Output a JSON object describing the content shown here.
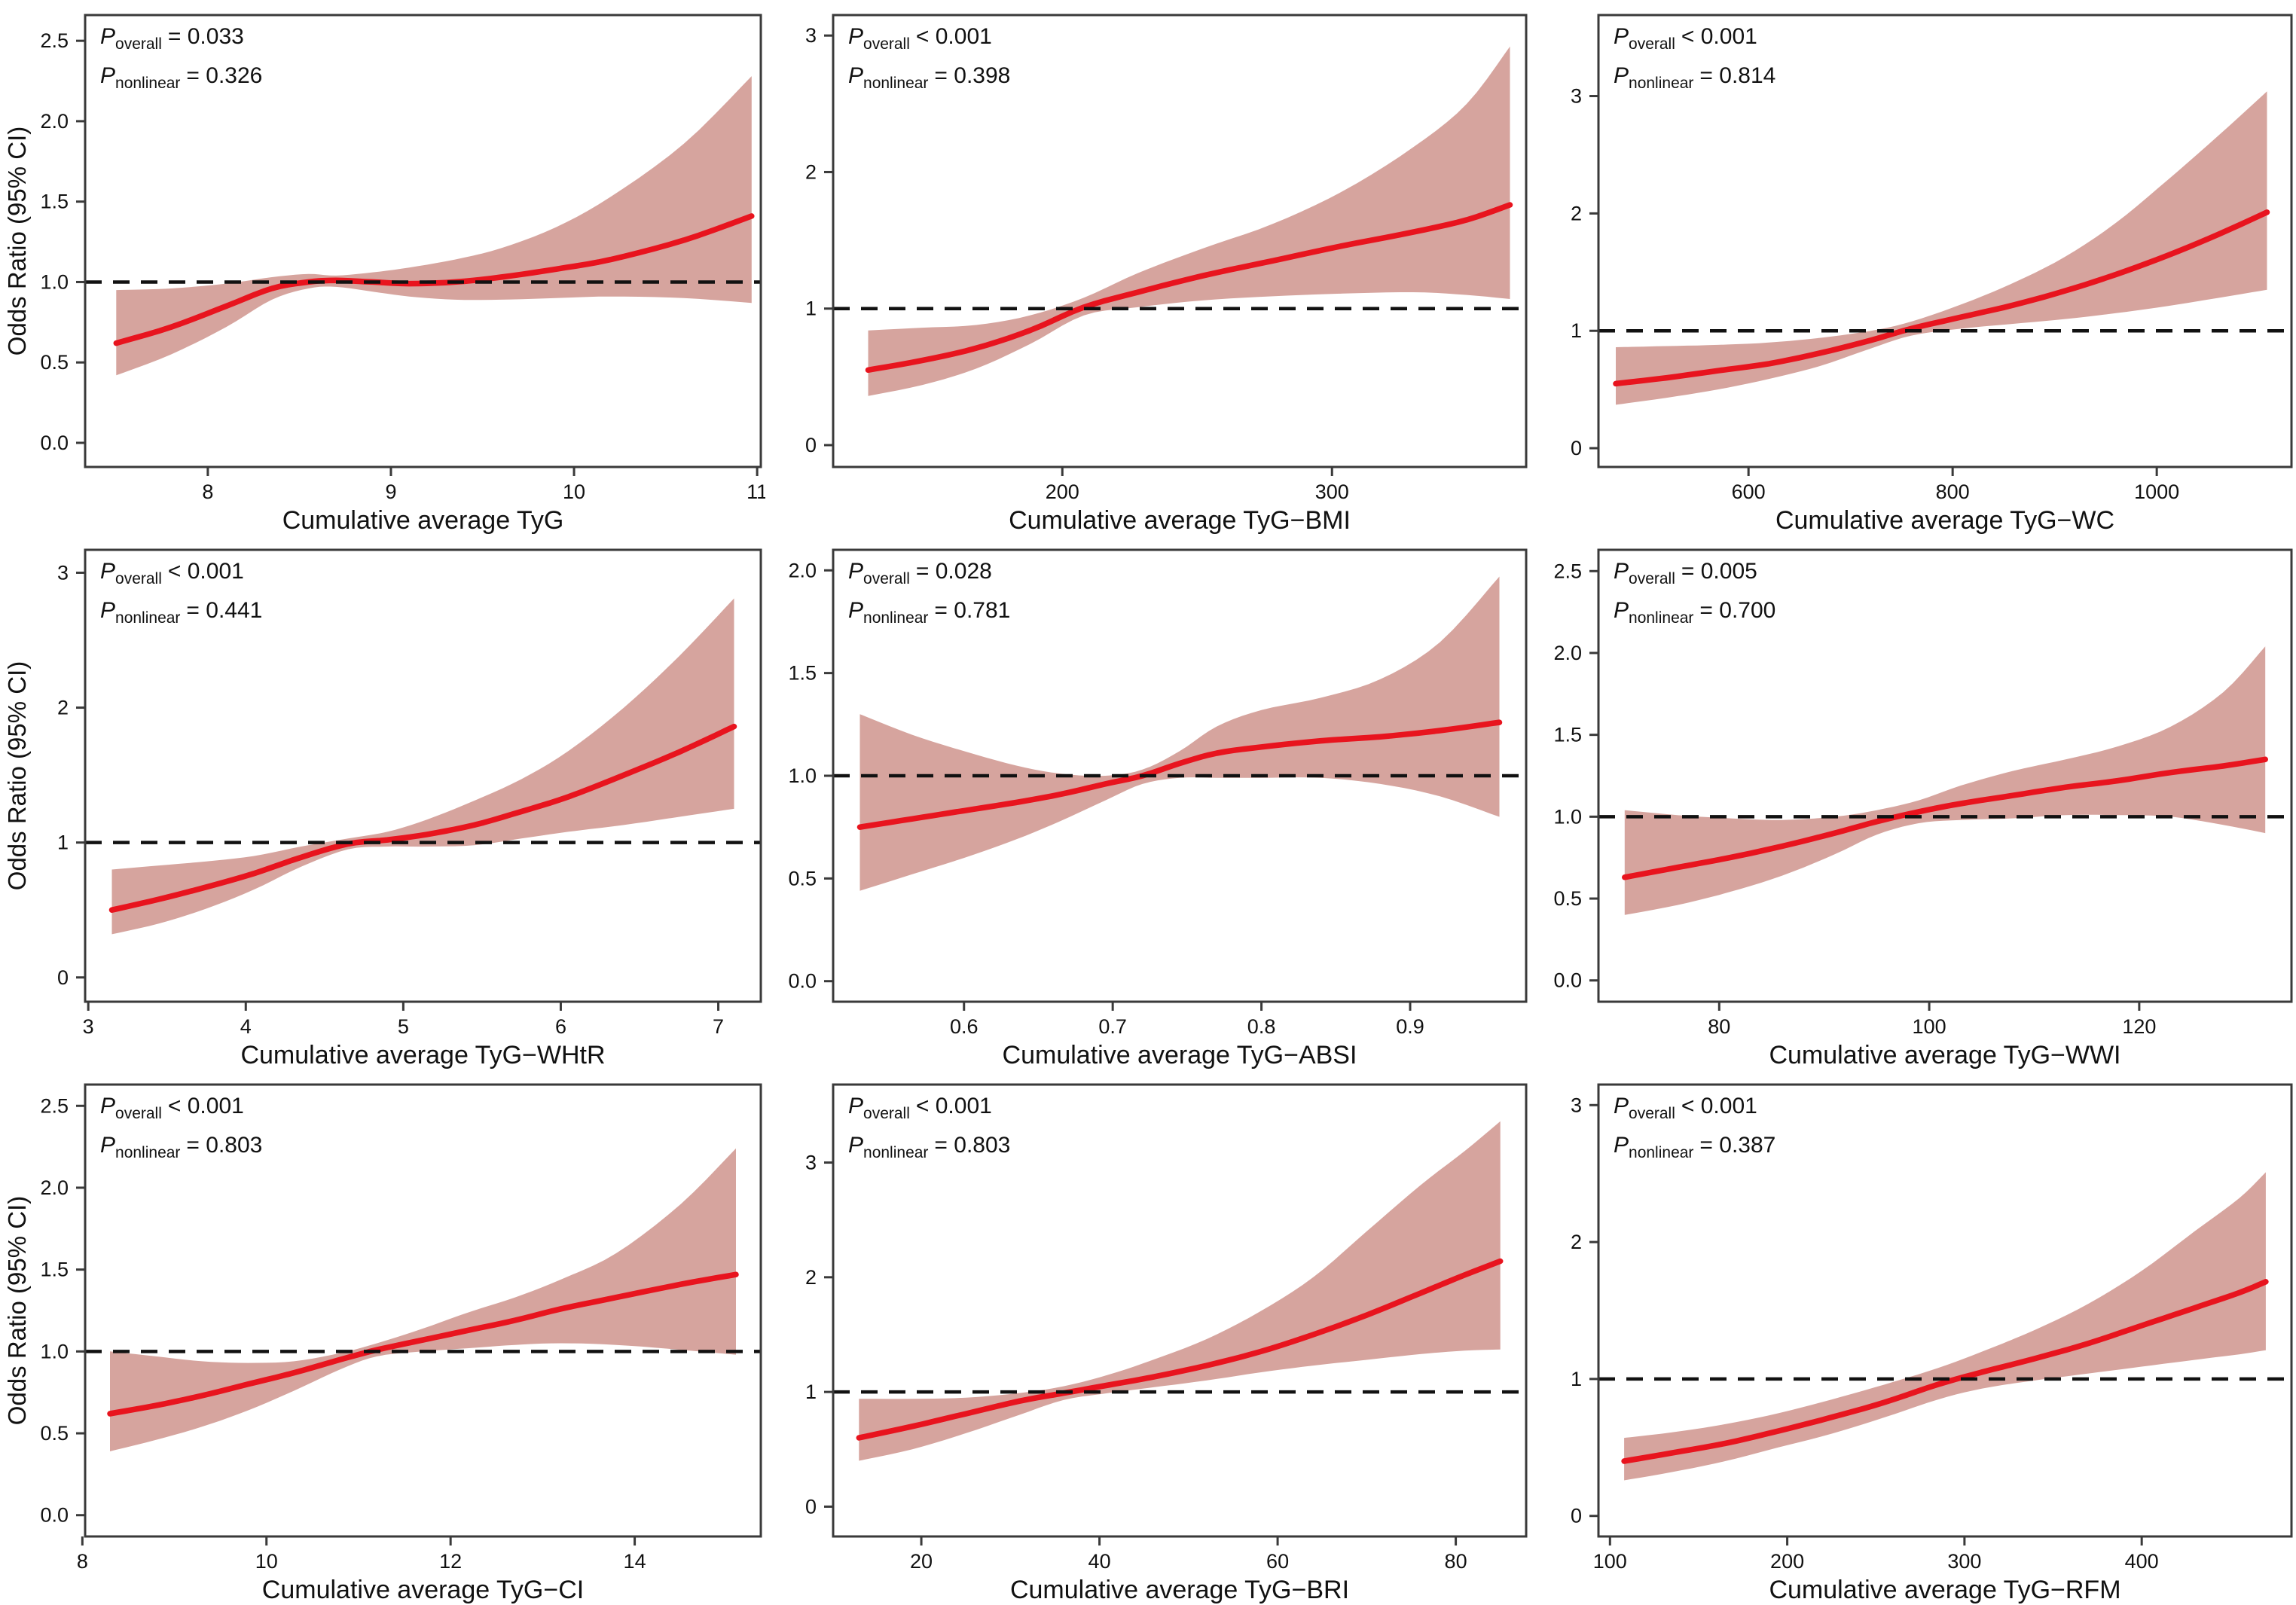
{
  "figure": {
    "ylabel": "Odds Ratio (95% CI)",
    "p_symbol": "P",
    "p_overall_sub": "overall",
    "p_nonlinear_sub": "nonlinear",
    "reference_odds_ratio": 1,
    "colors": {
      "ci_band": "#d6a49e",
      "spline_line": "#e8141e",
      "reference_line": "#111111",
      "axis_box": "#3a3a3a",
      "text": "#111111",
      "background": "#ffffff"
    }
  },
  "chart_data": [
    {
      "type": "line",
      "panel": "TyG",
      "xlabel": "Cumulative average TyG",
      "show_ylabel": true,
      "p_overall": "= 0.033",
      "p_nonlinear": "= 0.326",
      "xlim": [
        7.33,
        11.02
      ],
      "ylim": [
        -0.15,
        2.66
      ],
      "xticks": [
        8,
        9,
        10,
        11
      ],
      "xtick_labels": [
        "8",
        "9",
        "10",
        "11"
      ],
      "yticks": [
        0,
        0.5,
        1,
        1.5,
        2,
        2.5
      ],
      "ytick_labels": [
        "0.0",
        "0.5",
        "1.0",
        "1.5",
        "2.0",
        "2.5"
      ],
      "reference_y": 1,
      "x": [
        7.5,
        7.8,
        8.1,
        8.35,
        8.55,
        8.7,
        8.9,
        9.1,
        9.35,
        9.6,
        9.9,
        10.2,
        10.6,
        10.97
      ],
      "odds_ratio": [
        0.62,
        0.72,
        0.85,
        0.96,
        1.0,
        1.01,
        1.0,
        0.99,
        1.0,
        1.03,
        1.08,
        1.14,
        1.26,
        1.41
      ],
      "ci_upper": [
        0.95,
        0.96,
        0.99,
        1.03,
        1.05,
        1.04,
        1.06,
        1.09,
        1.14,
        1.21,
        1.34,
        1.53,
        1.86,
        2.28
      ],
      "ci_lower": [
        0.42,
        0.55,
        0.72,
        0.89,
        0.96,
        0.97,
        0.94,
        0.91,
        0.89,
        0.89,
        0.9,
        0.91,
        0.9,
        0.87
      ]
    },
    {
      "type": "line",
      "panel": "TyG-BMI",
      "xlabel": "Cumulative average TyG−BMI",
      "show_ylabel": false,
      "p_overall": "< 0.001",
      "p_nonlinear": "= 0.398",
      "xlim": [
        115,
        372
      ],
      "ylim": [
        -0.16,
        3.15
      ],
      "xticks": [
        200,
        300
      ],
      "xtick_labels": [
        "200",
        "300"
      ],
      "yticks": [
        0,
        1,
        2,
        3
      ],
      "ytick_labels": [
        "0",
        "1",
        "2",
        "3"
      ],
      "reference_y": 1,
      "x": [
        128,
        148,
        168,
        188,
        208,
        228,
        252,
        278,
        304,
        330,
        350,
        366
      ],
      "odds_ratio": [
        0.55,
        0.62,
        0.71,
        0.84,
        1.01,
        1.12,
        1.24,
        1.35,
        1.46,
        1.56,
        1.65,
        1.76
      ],
      "ci_upper": [
        0.84,
        0.86,
        0.88,
        0.95,
        1.08,
        1.26,
        1.44,
        1.62,
        1.86,
        2.18,
        2.5,
        2.92
      ],
      "ci_lower": [
        0.36,
        0.44,
        0.56,
        0.74,
        0.95,
        1.01,
        1.06,
        1.09,
        1.11,
        1.12,
        1.1,
        1.07
      ]
    },
    {
      "type": "line",
      "panel": "TyG-WC",
      "xlabel": "Cumulative average TyG−WC",
      "show_ylabel": false,
      "p_overall": "< 0.001",
      "p_nonlinear": "= 0.814",
      "xlim": [
        453,
        1132
      ],
      "ylim": [
        -0.16,
        3.69
      ],
      "xticks": [
        600,
        800,
        1000
      ],
      "xtick_labels": [
        "600",
        "800",
        "1000"
      ],
      "yticks": [
        0,
        1,
        2,
        3
      ],
      "ytick_labels": [
        "0",
        "1",
        "2",
        "3"
      ],
      "reference_y": 1,
      "x": [
        470,
        520,
        570,
        620,
        670,
        720,
        760,
        810,
        860,
        910,
        960,
        1010,
        1060,
        1108
      ],
      "odds_ratio": [
        0.55,
        0.6,
        0.66,
        0.72,
        0.81,
        0.92,
        1.02,
        1.12,
        1.22,
        1.34,
        1.48,
        1.64,
        1.82,
        2.01
      ],
      "ci_upper": [
        0.86,
        0.87,
        0.88,
        0.9,
        0.94,
        1.0,
        1.08,
        1.23,
        1.41,
        1.63,
        1.92,
        2.28,
        2.66,
        3.04
      ],
      "ci_lower": [
        0.37,
        0.43,
        0.5,
        0.59,
        0.7,
        0.85,
        0.96,
        1.02,
        1.06,
        1.1,
        1.15,
        1.21,
        1.28,
        1.35
      ]
    },
    {
      "type": "line",
      "panel": "TyG-WHtR",
      "xlabel": "Cumulative average TyG−WHtR",
      "show_ylabel": true,
      "p_overall": "< 0.001",
      "p_nonlinear": "= 0.441",
      "xlim": [
        2.98,
        7.27
      ],
      "ylim": [
        -0.18,
        3.17
      ],
      "xticks": [
        3,
        4,
        5,
        6,
        7
      ],
      "xtick_labels": [
        "3",
        "4",
        "5",
        "6",
        "7"
      ],
      "yticks": [
        0,
        1,
        2,
        3
      ],
      "ytick_labels": [
        "0",
        "1",
        "2",
        "3"
      ],
      "reference_y": 1,
      "x": [
        3.15,
        3.45,
        3.75,
        4.05,
        4.35,
        4.65,
        4.9,
        5.15,
        5.45,
        5.75,
        6.05,
        6.4,
        6.75,
        7.1
      ],
      "odds_ratio": [
        0.5,
        0.58,
        0.67,
        0.77,
        0.89,
        0.99,
        1.02,
        1.06,
        1.13,
        1.23,
        1.34,
        1.5,
        1.67,
        1.86
      ],
      "ci_upper": [
        0.8,
        0.83,
        0.86,
        0.9,
        0.97,
        1.03,
        1.08,
        1.17,
        1.31,
        1.47,
        1.68,
        2.0,
        2.38,
        2.81
      ],
      "ci_lower": [
        0.32,
        0.4,
        0.51,
        0.65,
        0.82,
        0.95,
        0.97,
        0.97,
        0.98,
        1.03,
        1.08,
        1.13,
        1.19,
        1.25
      ]
    },
    {
      "type": "line",
      "panel": "TyG-ABSI",
      "xlabel": "Cumulative average TyG−ABSI",
      "show_ylabel": false,
      "p_overall": "= 0.028",
      "p_nonlinear": "= 0.781",
      "xlim": [
        0.512,
        0.978
      ],
      "ylim": [
        -0.1,
        2.1
      ],
      "xticks": [
        0.6,
        0.7,
        0.8,
        0.9
      ],
      "xtick_labels": [
        "0.6",
        "0.7",
        "0.8",
        "0.9"
      ],
      "yticks": [
        0,
        0.5,
        1,
        1.5,
        2
      ],
      "ytick_labels": [
        "0.0",
        "0.5",
        "1.0",
        "1.5",
        "2.0"
      ],
      "reference_y": 1,
      "x": [
        0.53,
        0.565,
        0.6,
        0.635,
        0.665,
        0.695,
        0.72,
        0.745,
        0.77,
        0.8,
        0.84,
        0.88,
        0.92,
        0.96
      ],
      "odds_ratio": [
        0.75,
        0.79,
        0.83,
        0.87,
        0.91,
        0.96,
        1.0,
        1.06,
        1.11,
        1.14,
        1.17,
        1.19,
        1.22,
        1.26
      ],
      "ci_upper": [
        1.3,
        1.2,
        1.12,
        1.05,
        1.01,
        1.0,
        1.03,
        1.12,
        1.24,
        1.32,
        1.38,
        1.47,
        1.65,
        1.97
      ],
      "ci_lower": [
        0.44,
        0.52,
        0.6,
        0.69,
        0.78,
        0.88,
        0.96,
        0.99,
        0.99,
        0.99,
        0.99,
        0.96,
        0.9,
        0.8
      ]
    },
    {
      "type": "line",
      "panel": "TyG-WWI",
      "xlabel": "Cumulative average TyG−WWI",
      "show_ylabel": false,
      "p_overall": "= 0.005",
      "p_nonlinear": "= 0.700",
      "xlim": [
        68.5,
        134.5
      ],
      "ylim": [
        -0.13,
        2.63
      ],
      "xticks": [
        80,
        100,
        120
      ],
      "xtick_labels": [
        "80",
        "100",
        "120"
      ],
      "yticks": [
        0,
        0.5,
        1,
        1.5,
        2,
        2.5
      ],
      "ytick_labels": [
        "0.0",
        "0.5",
        "1.0",
        "1.5",
        "2.0",
        "2.5"
      ],
      "reference_y": 1,
      "x": [
        71,
        76,
        81,
        86,
        91,
        95,
        99,
        103,
        108,
        113,
        118,
        123,
        128,
        132
      ],
      "odds_ratio": [
        0.63,
        0.69,
        0.75,
        0.82,
        0.9,
        0.97,
        1.03,
        1.08,
        1.13,
        1.18,
        1.22,
        1.27,
        1.31,
        1.35
      ],
      "ci_upper": [
        1.04,
        1.01,
        0.99,
        0.98,
        1.0,
        1.04,
        1.1,
        1.19,
        1.28,
        1.35,
        1.43,
        1.55,
        1.76,
        2.04
      ],
      "ci_lower": [
        0.4,
        0.46,
        0.54,
        0.64,
        0.77,
        0.89,
        0.96,
        0.98,
        0.99,
        1.01,
        1.01,
        1.0,
        0.95,
        0.9
      ]
    },
    {
      "type": "line",
      "panel": "TyG-CI",
      "xlabel": "Cumulative average TyG−CI",
      "show_ylabel": true,
      "p_overall": "< 0.001",
      "p_nonlinear": "= 0.803",
      "xlim": [
        8.03,
        15.37
      ],
      "ylim": [
        -0.13,
        2.63
      ],
      "xticks": [
        8,
        10,
        12,
        14
      ],
      "xtick_labels": [
        "8",
        "10",
        "12",
        "14"
      ],
      "yticks": [
        0,
        0.5,
        1,
        1.5,
        2,
        2.5
      ],
      "ytick_labels": [
        "0.0",
        "0.5",
        "1.0",
        "1.5",
        "2.0",
        "2.5"
      ],
      "reference_y": 1,
      "x": [
        8.3,
        8.8,
        9.3,
        9.8,
        10.3,
        10.8,
        11.2,
        11.7,
        12.2,
        12.7,
        13.2,
        13.8,
        14.5,
        15.1
      ],
      "odds_ratio": [
        0.62,
        0.67,
        0.73,
        0.8,
        0.87,
        0.95,
        1.01,
        1.07,
        1.13,
        1.19,
        1.26,
        1.33,
        1.41,
        1.47
      ],
      "ci_upper": [
        1.0,
        0.97,
        0.94,
        0.93,
        0.94,
        0.99,
        1.05,
        1.14,
        1.24,
        1.33,
        1.44,
        1.6,
        1.9,
        2.24
      ],
      "ci_lower": [
        0.39,
        0.46,
        0.54,
        0.64,
        0.76,
        0.89,
        0.97,
        1.0,
        1.02,
        1.04,
        1.05,
        1.04,
        1.01,
        0.98
      ]
    },
    {
      "type": "line",
      "panel": "TyG-BRI",
      "xlabel": "Cumulative average TyG−BRI",
      "show_ylabel": false,
      "p_overall": "< 0.001",
      "p_nonlinear": "= 0.803",
      "xlim": [
        10.1,
        87.9
      ],
      "ylim": [
        -0.26,
        3.68
      ],
      "xticks": [
        20,
        40,
        60,
        80
      ],
      "xtick_labels": [
        "20",
        "40",
        "60",
        "80"
      ],
      "yticks": [
        0,
        1,
        2,
        3
      ],
      "ytick_labels": [
        "0",
        "1",
        "2",
        "3"
      ],
      "reference_y": 1,
      "x": [
        13,
        19,
        25,
        31,
        36,
        41,
        46,
        52,
        58,
        64,
        70,
        76,
        81,
        85
      ],
      "odds_ratio": [
        0.6,
        0.7,
        0.81,
        0.92,
        0.99,
        1.06,
        1.13,
        1.23,
        1.35,
        1.5,
        1.67,
        1.86,
        2.02,
        2.14
      ],
      "ci_upper": [
        0.94,
        0.94,
        0.95,
        0.99,
        1.05,
        1.15,
        1.28,
        1.46,
        1.7,
        2.0,
        2.4,
        2.8,
        3.1,
        3.36
      ],
      "ci_lower": [
        0.4,
        0.5,
        0.64,
        0.8,
        0.93,
        0.99,
        1.04,
        1.1,
        1.17,
        1.23,
        1.28,
        1.33,
        1.36,
        1.37
      ]
    },
    {
      "type": "line",
      "panel": "TyG-RFM",
      "xlabel": "Cumulative average TyG−RFM",
      "show_ylabel": false,
      "p_overall": "< 0.001",
      "p_nonlinear": "= 0.387",
      "xlim": [
        93.5,
        484.5
      ],
      "ylim": [
        -0.15,
        3.15
      ],
      "xticks": [
        100,
        200,
        300,
        400
      ],
      "xtick_labels": [
        "100",
        "200",
        "300",
        "400"
      ],
      "yticks": [
        0,
        1,
        2,
        3
      ],
      "ytick_labels": [
        "0",
        "1",
        "2",
        "3"
      ],
      "reference_y": 1,
      "x": [
        108,
        135,
        165,
        195,
        225,
        255,
        285,
        310,
        340,
        370,
        400,
        430,
        455,
        470
      ],
      "odds_ratio": [
        0.4,
        0.46,
        0.53,
        0.62,
        0.72,
        0.83,
        0.96,
        1.05,
        1.15,
        1.26,
        1.39,
        1.52,
        1.63,
        1.71
      ],
      "ci_upper": [
        0.57,
        0.61,
        0.67,
        0.75,
        0.85,
        0.96,
        1.08,
        1.2,
        1.36,
        1.55,
        1.79,
        2.08,
        2.32,
        2.51
      ],
      "ci_lower": [
        0.26,
        0.32,
        0.4,
        0.5,
        0.6,
        0.72,
        0.85,
        0.93,
        0.99,
        1.04,
        1.09,
        1.14,
        1.18,
        1.21
      ]
    }
  ]
}
